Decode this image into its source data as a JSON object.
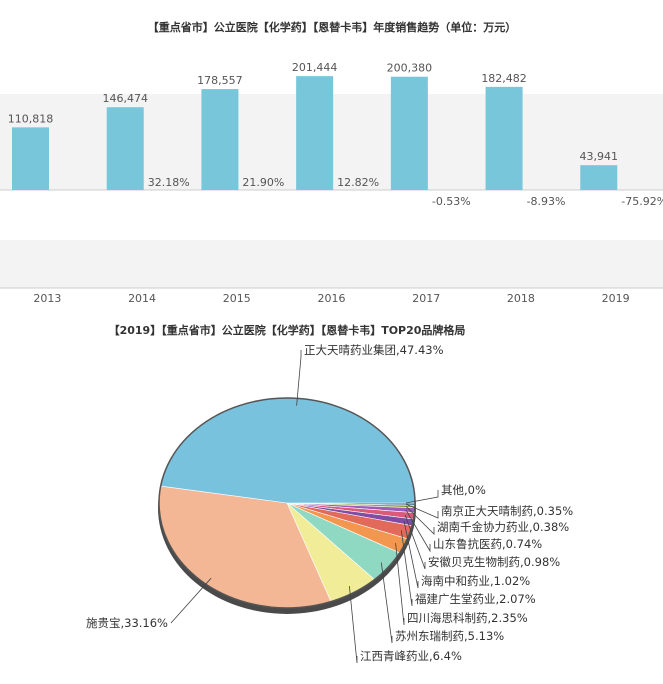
{
  "chart_data": [
    {
      "type": "bar",
      "title": "【重点省市】公立医院【化学药】【恩替卡韦】年度销售趋势（单位：万元）",
      "categories": [
        "2013",
        "2014",
        "2015",
        "2016",
        "2017",
        "2018",
        "2019"
      ],
      "values": [
        110818,
        146474,
        178557,
        201444,
        200380,
        182482,
        43941
      ],
      "value_labels": [
        "110,818",
        "146,474",
        "178,557",
        "201,444",
        "200,380",
        "182,482",
        "43,941"
      ],
      "growth_labels": [
        "",
        "32.18%",
        "21.90%",
        "12.82%",
        "-0.53%",
        "-8.93%",
        "-75.92%"
      ],
      "growth_values": [
        null,
        32.18,
        21.9,
        12.82,
        -0.53,
        -8.93,
        -75.92
      ],
      "ylim": [
        0,
        230000
      ],
      "grid": false,
      "colors": {
        "bar": "#78c6da",
        "band": "#f3f3f3",
        "axis": "#cccccc",
        "text": "#555555",
        "title": "#333333"
      }
    },
    {
      "type": "pie",
      "title": "【2019】【重点省市】公立医院【化学药】【恩替卡韦】TOP20品牌格局",
      "slices": [
        {
          "label": "其他,0%",
          "value": 0.0,
          "color": "#6d8f3c"
        },
        {
          "label": "南京正大天晴制药,0.35%",
          "value": 0.35,
          "color": "#4f7a99"
        },
        {
          "label": "湖南千金协力药业,0.38%",
          "value": 0.38,
          "color": "#8fa13a"
        },
        {
          "label": "山东鲁抗医药,0.74%",
          "value": 0.74,
          "color": "#9e5cb8"
        },
        {
          "label": "安徽贝克生物制药,0.98%",
          "value": 0.98,
          "color": "#d95a7a"
        },
        {
          "label": "海南中和药业,1.02%",
          "value": 1.02,
          "color": "#7f4ca6"
        },
        {
          "label": "福建广生堂药业,2.07%",
          "value": 2.07,
          "color": "#e26a5a"
        },
        {
          "label": "四川海思科制药,2.35%",
          "value": 2.35,
          "color": "#f3964f"
        },
        {
          "label": "苏州东瑞制药,5.13%",
          "value": 5.13,
          "color": "#8fd8c2"
        },
        {
          "label": "江西青峰药业,6.4%",
          "value": 6.4,
          "color": "#f1ec98"
        },
        {
          "label": "施贵宝,33.16%",
          "value": 33.16,
          "color": "#f3b795"
        },
        {
          "label": "正大天晴药业集团,47.43%",
          "value": 47.43,
          "color": "#79c2dd"
        }
      ],
      "colors": {
        "rim": "#555555",
        "leader": "#444444",
        "text": "#333333"
      }
    }
  ]
}
